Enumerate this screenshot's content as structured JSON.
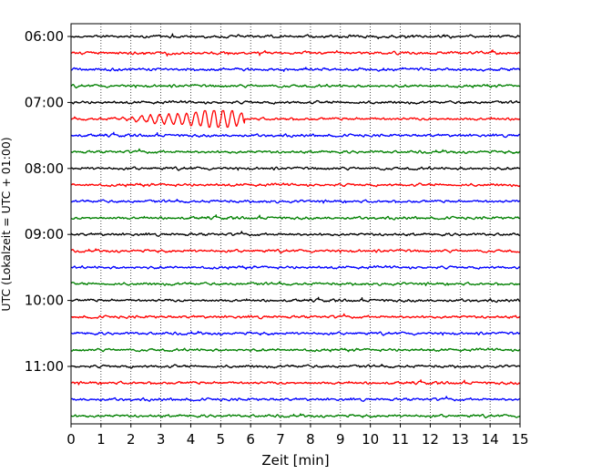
{
  "chart_data": {
    "type": "line",
    "title": "",
    "xlabel": "Zeit  [min]",
    "ylabel": "UTC (Lokalzeit = UTC + 01:00)",
    "xlim": [
      0,
      15
    ],
    "x_ticks": [
      "0",
      "1",
      "2",
      "3",
      "4",
      "5",
      "6",
      "7",
      "8",
      "9",
      "10",
      "11",
      "12",
      "13",
      "14",
      "15"
    ],
    "y_ticks": [
      "06:00",
      "07:00",
      "08:00",
      "09:00",
      "10:00",
      "11:00"
    ],
    "grid": "vertical-dotted",
    "trace_interval_minutes": 15,
    "trace_colors": [
      "#000000",
      "#ff0000",
      "#0000ff",
      "#008000"
    ],
    "traces": [
      {
        "start": "06:00",
        "color": "#000000"
      },
      {
        "start": "06:15",
        "color": "#ff0000"
      },
      {
        "start": "06:30",
        "color": "#0000ff"
      },
      {
        "start": "06:45",
        "color": "#008000"
      },
      {
        "start": "07:00",
        "color": "#000000"
      },
      {
        "start": "07:15",
        "color": "#ff0000",
        "event": {
          "from_min": 1.2,
          "to_min": 5.8,
          "peak_min": 4.9
        }
      },
      {
        "start": "07:30",
        "color": "#0000ff"
      },
      {
        "start": "07:45",
        "color": "#008000"
      },
      {
        "start": "08:00",
        "color": "#000000"
      },
      {
        "start": "08:15",
        "color": "#ff0000"
      },
      {
        "start": "08:30",
        "color": "#0000ff"
      },
      {
        "start": "08:45",
        "color": "#008000"
      },
      {
        "start": "09:00",
        "color": "#000000"
      },
      {
        "start": "09:15",
        "color": "#ff0000"
      },
      {
        "start": "09:30",
        "color": "#0000ff"
      },
      {
        "start": "09:45",
        "color": "#008000"
      },
      {
        "start": "10:00",
        "color": "#000000"
      },
      {
        "start": "10:15",
        "color": "#ff0000"
      },
      {
        "start": "10:30",
        "color": "#0000ff"
      },
      {
        "start": "10:45",
        "color": "#008000"
      },
      {
        "start": "11:00",
        "color": "#000000"
      },
      {
        "start": "11:15",
        "color": "#ff0000"
      },
      {
        "start": "11:30",
        "color": "#0000ff"
      },
      {
        "start": "11:45",
        "color": "#008000"
      }
    ]
  }
}
